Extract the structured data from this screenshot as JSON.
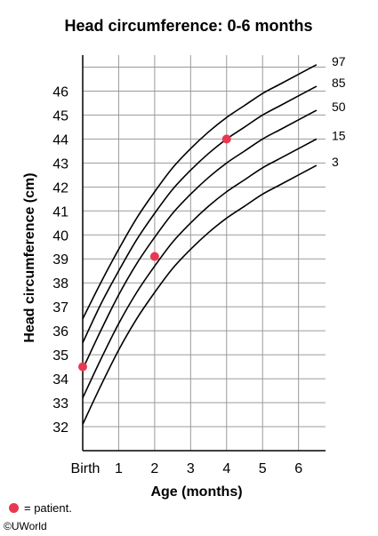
{
  "chart_data": {
    "type": "line",
    "title": "Head circumference: 0-6 months",
    "xlabel": "Age (months)",
    "ylabel": "Head circumference (cm)",
    "xlim": [
      0,
      6.75
    ],
    "ylim": [
      31,
      47.5
    ],
    "x_ticks": [
      {
        "value": 0,
        "label": "Birth"
      },
      {
        "value": 1,
        "label": "1"
      },
      {
        "value": 2,
        "label": "2"
      },
      {
        "value": 3,
        "label": "3"
      },
      {
        "value": 4,
        "label": "4"
      },
      {
        "value": 5,
        "label": "5"
      },
      {
        "value": 6,
        "label": "6"
      }
    ],
    "y_ticks": [
      32,
      33,
      34,
      35,
      36,
      37,
      38,
      39,
      40,
      41,
      42,
      43,
      44,
      45,
      46
    ],
    "grid": true,
    "x": [
      0,
      0.5,
      1,
      1.5,
      2,
      2.5,
      3,
      3.5,
      4,
      4.5,
      5,
      5.5,
      6,
      6.5
    ],
    "series": [
      {
        "name": "97",
        "values": [
          36.5,
          38.0,
          39.4,
          40.7,
          41.8,
          42.8,
          43.6,
          44.3,
          44.9,
          45.4,
          45.9,
          46.3,
          46.7,
          47.1
        ]
      },
      {
        "name": "85",
        "values": [
          35.5,
          37.1,
          38.5,
          39.8,
          40.9,
          41.9,
          42.7,
          43.4,
          44.0,
          44.5,
          45.0,
          45.4,
          45.8,
          46.2
        ]
      },
      {
        "name": "50",
        "values": [
          34.4,
          36.0,
          37.5,
          38.8,
          39.9,
          40.9,
          41.7,
          42.4,
          43.0,
          43.5,
          44.0,
          44.4,
          44.8,
          45.2
        ]
      },
      {
        "name": "15",
        "values": [
          33.2,
          34.8,
          36.3,
          37.6,
          38.7,
          39.7,
          40.5,
          41.2,
          41.8,
          42.3,
          42.8,
          43.2,
          43.6,
          44.0
        ]
      },
      {
        "name": "3",
        "values": [
          32.1,
          33.7,
          35.2,
          36.5,
          37.6,
          38.6,
          39.4,
          40.1,
          40.7,
          41.2,
          41.7,
          42.1,
          42.5,
          42.9
        ]
      }
    ],
    "patient_points": [
      {
        "x": 0,
        "y": 34.5
      },
      {
        "x": 2,
        "y": 39.1
      },
      {
        "x": 4,
        "y": 44.0
      }
    ],
    "colors": {
      "curve": "#000000",
      "grid": "#9a9a9a",
      "patient": "#e8384f"
    }
  },
  "legend": {
    "label": "= patient."
  },
  "copyright": "©UWorld"
}
